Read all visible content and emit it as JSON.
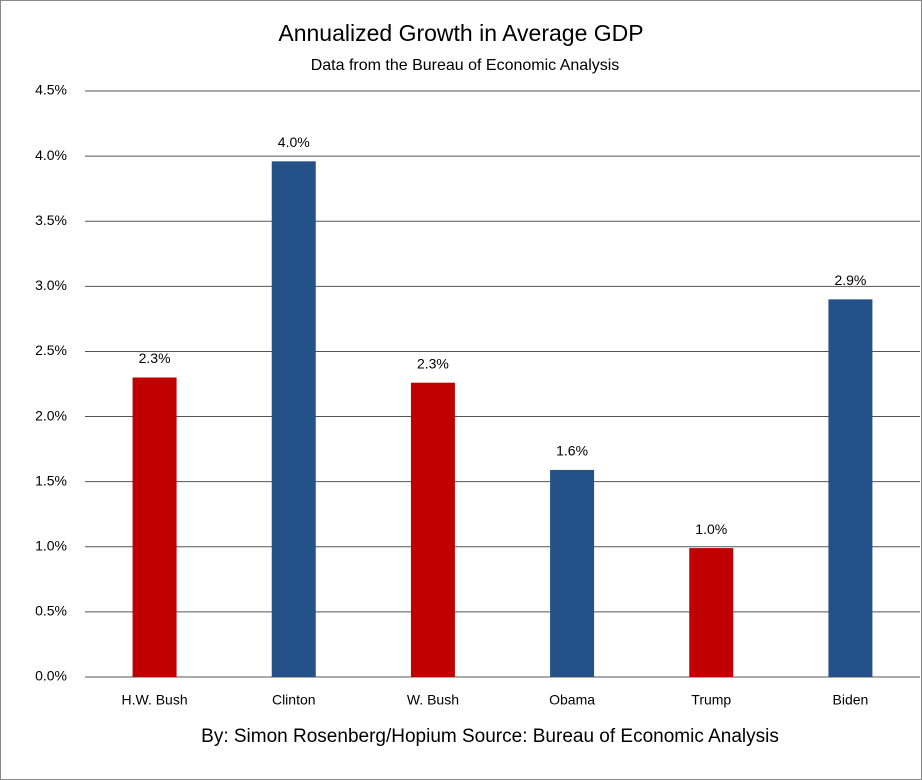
{
  "chart_data": {
    "type": "bar",
    "title": "Annualized Growth in Average GDP",
    "subtitle": "Data from the Bureau of Economic Analysis",
    "caption": "By: Simon Rosenberg/Hopium Source: Bureau of Economic Analysis",
    "categories": [
      "H.W. Bush",
      "Clinton",
      "W. Bush",
      "Obama",
      "Trump",
      "Biden"
    ],
    "values": [
      2.3,
      3.96,
      2.26,
      1.59,
      0.99,
      2.9
    ],
    "value_labels": [
      "2.3%",
      "4.0%",
      "2.3%",
      "1.6%",
      "1.0%",
      "2.9%"
    ],
    "colors": [
      "#c00000",
      "#255189",
      "#c00000",
      "#255189",
      "#c00000",
      "#255189"
    ],
    "ylim": [
      0,
      4.5
    ],
    "yticks": [
      {
        "value": 0,
        "label": "0.0%"
      },
      {
        "value": 0.5,
        "label": "0.5%"
      },
      {
        "value": 1,
        "label": "1.0%"
      },
      {
        "value": 1.5,
        "label": "1.5%"
      },
      {
        "value": 2,
        "label": "2.0%"
      },
      {
        "value": 2.5,
        "label": "2.5%"
      },
      {
        "value": 3,
        "label": "3.0%"
      },
      {
        "value": 3.5,
        "label": "3.5%"
      },
      {
        "value": 4,
        "label": "4.0%"
      },
      {
        "value": 4.5,
        "label": "4.5%"
      }
    ],
    "grid": true
  }
}
